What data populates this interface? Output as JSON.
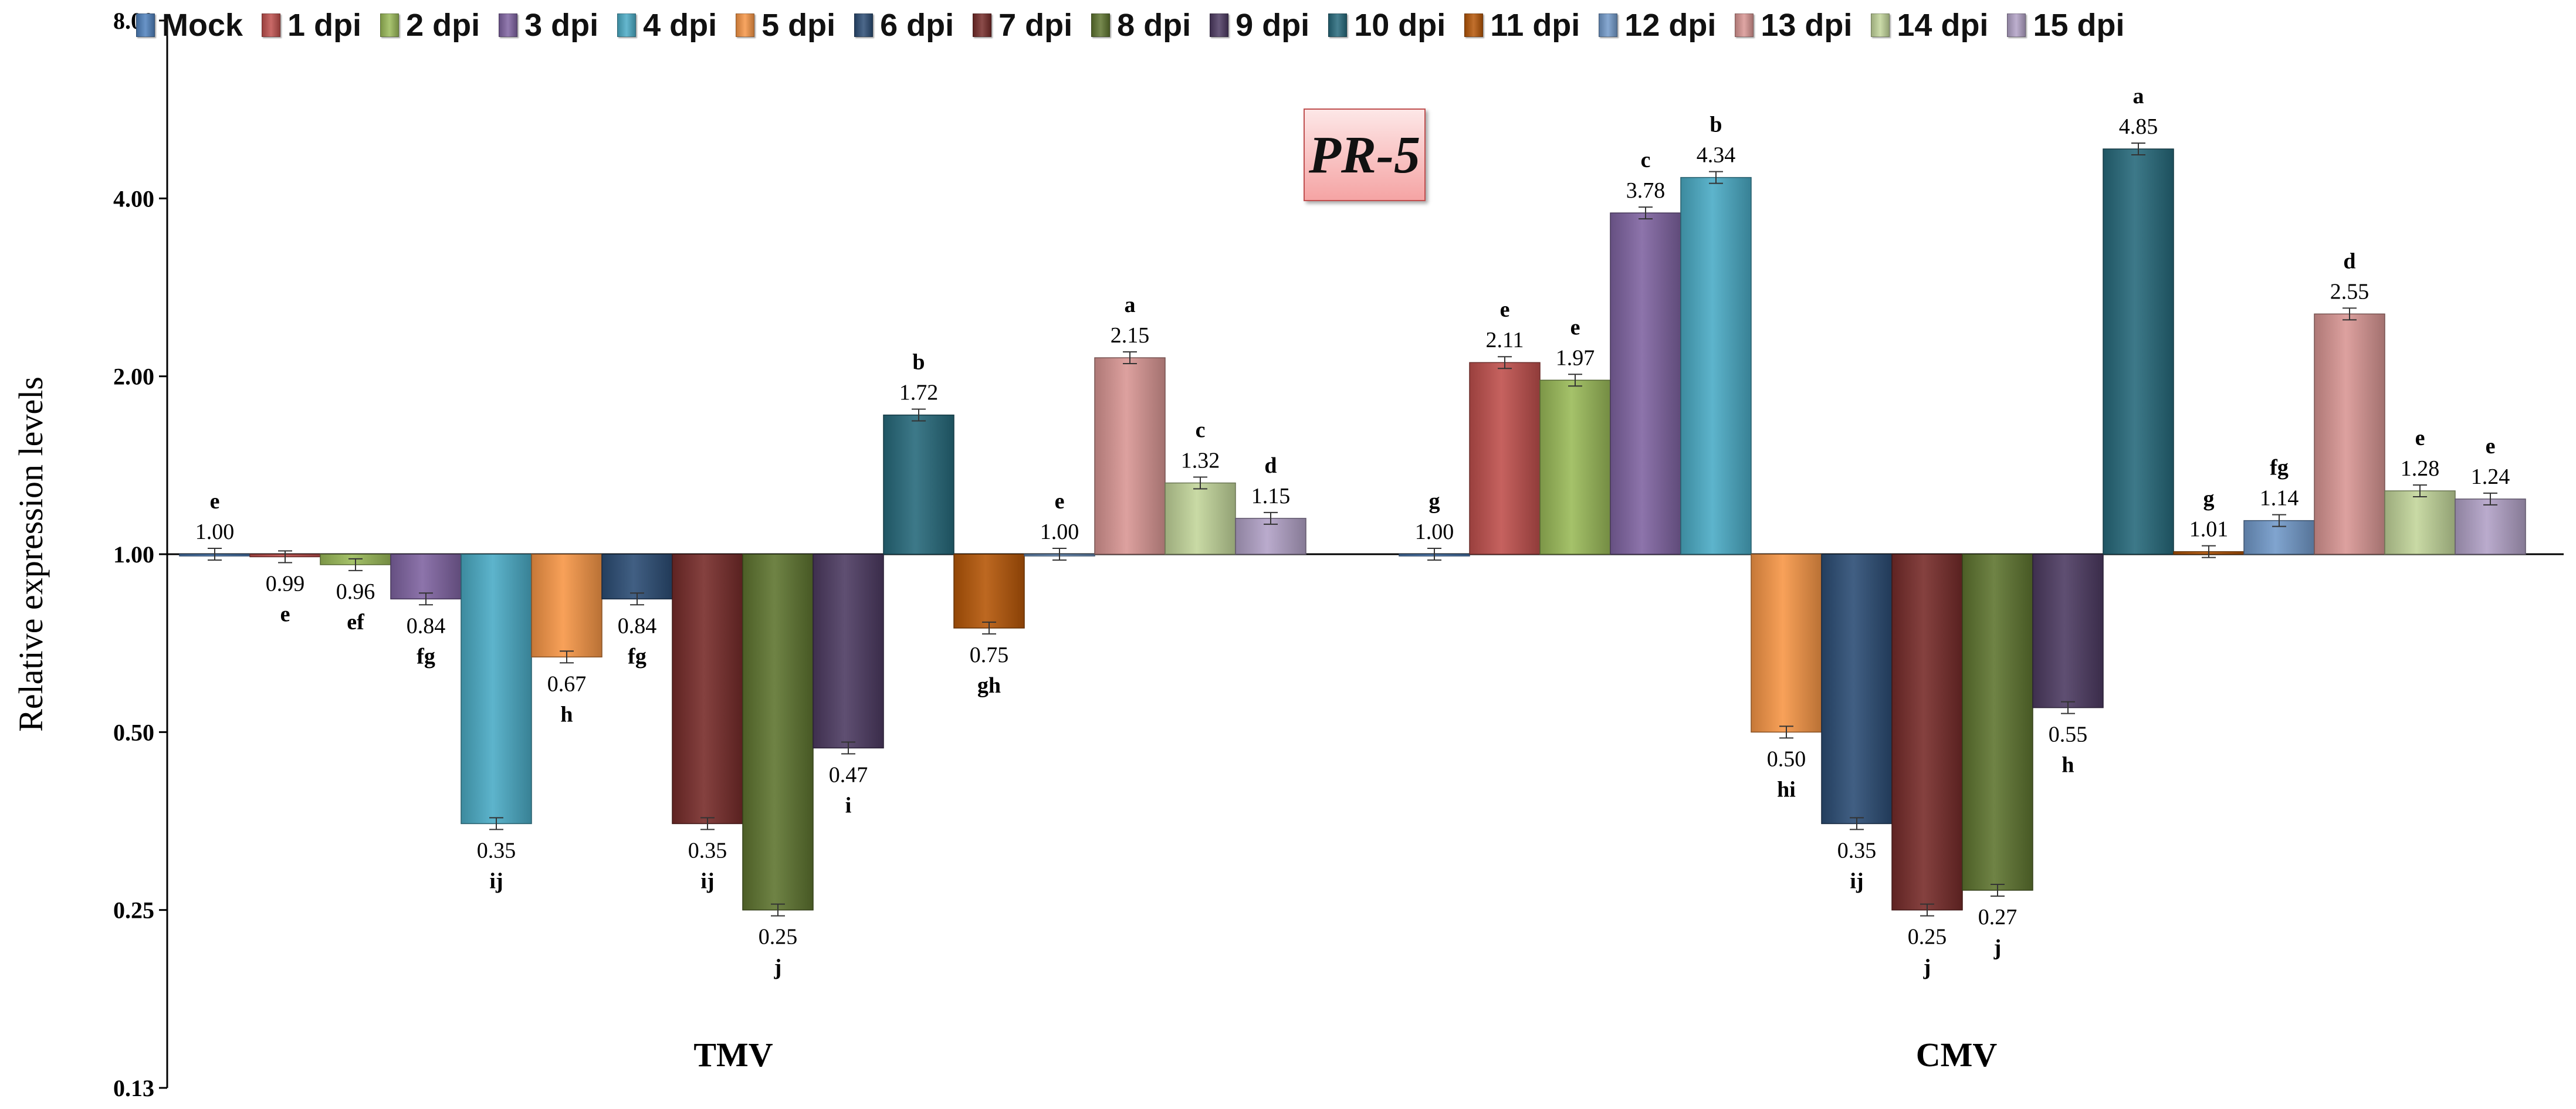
{
  "chart_data": {
    "type": "bar",
    "ylabel": "Relative expression levels",
    "yscale": "log2",
    "ylim": [
      0.125,
      8
    ],
    "yticks": [
      8,
      4,
      2,
      1,
      0.5,
      0.25,
      0.125
    ],
    "ytick_labels": [
      "8.00",
      "4.00",
      "2.00",
      "1.00",
      "0.50",
      "0.25",
      "0.13"
    ],
    "baseline": 1.0,
    "annotation": "PR-5",
    "groups": [
      "TMV",
      "CMV"
    ],
    "series": [
      {
        "name": "Mock",
        "color": "#4f81bd",
        "values": [
          1.0,
          1.0
        ],
        "labels": [
          "e",
          "g"
        ]
      },
      {
        "name": "1 dpi",
        "color": "#c0504d",
        "values": [
          0.99,
          2.11
        ],
        "labels": [
          "e",
          "e"
        ]
      },
      {
        "name": "2 dpi",
        "color": "#9bbb59",
        "values": [
          0.96,
          1.97
        ],
        "labels": [
          "ef",
          "e"
        ]
      },
      {
        "name": "3 dpi",
        "color": "#8064a2",
        "values": [
          0.84,
          3.78
        ],
        "labels": [
          "fg",
          "c"
        ]
      },
      {
        "name": "4 dpi",
        "color": "#4bacc6",
        "values": [
          0.35,
          4.34
        ],
        "labels": [
          "ij",
          "b"
        ]
      },
      {
        "name": "5 dpi",
        "color": "#f79646",
        "values": [
          0.67,
          0.5
        ],
        "labels": [
          "h",
          "hi"
        ]
      },
      {
        "name": "6 dpi",
        "color": "#2c4d75",
        "values": [
          0.84,
          0.35
        ],
        "labels": [
          "fg",
          "ij"
        ]
      },
      {
        "name": "7 dpi",
        "color": "#772c2a",
        "values": [
          0.35,
          0.25
        ],
        "labels": [
          "ij",
          "j"
        ]
      },
      {
        "name": "8 dpi",
        "color": "#5f7530",
        "values": [
          0.25,
          0.27
        ],
        "labels": [
          "j",
          "j"
        ]
      },
      {
        "name": "9 dpi",
        "color": "#4d3b62",
        "values": [
          0.47,
          0.55
        ],
        "labels": [
          "i",
          "h"
        ]
      },
      {
        "name": "10 dpi",
        "color": "#276a7c",
        "values": [
          1.72,
          4.85
        ],
        "labels": [
          "b",
          "a"
        ]
      },
      {
        "name": "11 dpi",
        "color": "#b65708",
        "values": [
          0.75,
          1.01
        ],
        "labels": [
          "gh",
          "g"
        ]
      },
      {
        "name": "12 dpi",
        "color": "#729aca",
        "values": [
          1.0,
          1.14
        ],
        "labels": [
          "e",
          "fg"
        ]
      },
      {
        "name": "13 dpi",
        "color": "#d99694",
        "values": [
          2.15,
          2.55
        ],
        "labels": [
          "a",
          "d"
        ]
      },
      {
        "name": "14 dpi",
        "color": "#c3d69b",
        "values": [
          1.32,
          1.28
        ],
        "labels": [
          "c",
          "e"
        ]
      },
      {
        "name": "15 dpi",
        "color": "#b2a2c7",
        "values": [
          1.15,
          1.24
        ],
        "labels": [
          "d",
          "e"
        ]
      }
    ]
  }
}
